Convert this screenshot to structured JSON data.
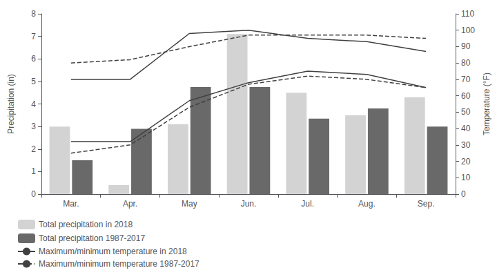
{
  "chart_data": {
    "type": "bar",
    "categories": [
      "Mar.",
      "Apr.",
      "May",
      "Jun.",
      "Jul.",
      "Aug.",
      "Sep."
    ],
    "series": [
      {
        "name": "Total precipitation in 2018",
        "type": "bar",
        "color": "#d3d3d3",
        "values": [
          3.0,
          0.4,
          3.1,
          7.1,
          4.5,
          3.5,
          4.3
        ]
      },
      {
        "name": "Total precipitation 1987-2017",
        "type": "bar",
        "color": "#696969",
        "values": [
          1.5,
          2.9,
          4.75,
          4.75,
          3.35,
          3.8,
          3.0
        ]
      },
      {
        "name": "Maximum/minimum temperature in 2018",
        "type": "line",
        "axis": "y2",
        "color": "#404040",
        "line_style": "solid",
        "values": [
          70,
          70,
          98,
          100,
          95,
          93,
          87
        ]
      },
      {
        "name": "Maximum/minimum temperature in 2018",
        "type": "line",
        "axis": "y2",
        "color": "#404040",
        "line_style": "solid",
        "values": [
          32,
          32,
          57,
          68,
          75,
          73,
          65
        ]
      },
      {
        "name": "Maximum/minimum temperature 1987-2017",
        "type": "line",
        "axis": "y2",
        "color": "#404040",
        "line_style": "dashed",
        "values": [
          80,
          82,
          90,
          97,
          97,
          97,
          95
        ]
      },
      {
        "name": "Maximum/minimum temperature 1987-2017",
        "type": "line",
        "axis": "y2",
        "color": "#404040",
        "line_style": "dashed",
        "values": [
          25,
          30,
          53,
          67,
          72,
          70,
          65
        ]
      }
    ],
    "ylabel": "Precipitation (in)",
    "y2label": "Temperature (°F)",
    "ylim": [
      0,
      8
    ],
    "yticks": [
      0,
      1,
      2,
      3,
      4,
      5,
      6,
      7,
      8
    ],
    "y2lim": [
      0,
      110
    ],
    "y2ticks": [
      0,
      10,
      20,
      30,
      40,
      50,
      60,
      70,
      80,
      90,
      100,
      110
    ],
    "grid": false,
    "legend": "bottom"
  }
}
